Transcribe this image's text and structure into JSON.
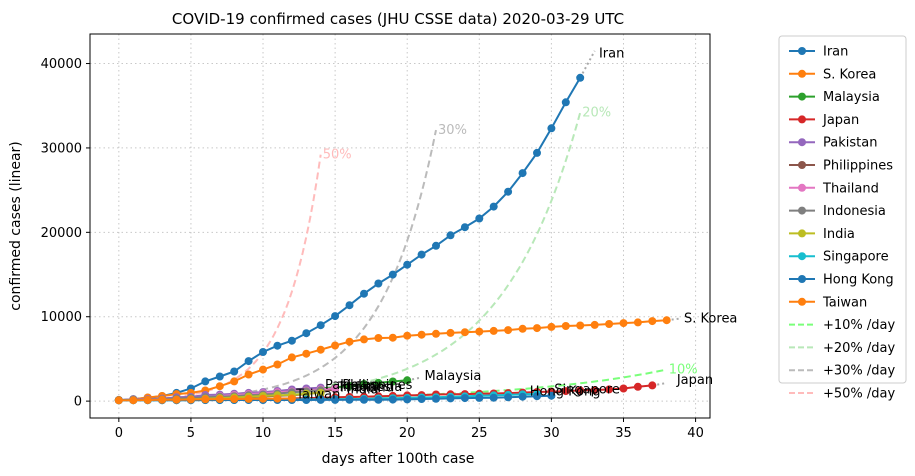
{
  "chart_data": {
    "type": "line",
    "title": "COVID-19 confirmed cases (JHU CSSE data) 2020-03-29 UTC",
    "xlabel": "days after 100th case",
    "ylabel": "confirmed cases (linear)",
    "xlim": [
      -2,
      41
    ],
    "ylim": [
      -2000,
      43500
    ],
    "xticks": [
      0,
      5,
      10,
      15,
      20,
      25,
      30,
      35,
      40
    ],
    "yticks": [
      0,
      10000,
      20000,
      30000,
      40000
    ],
    "grid": true,
    "legend_position": "outside-right",
    "series": [
      {
        "name": "Iran",
        "color": "#1f77b4",
        "y": [
          100,
          245,
          388,
          593,
          978,
          1501,
          2336,
          2922,
          3513,
          4747,
          5823,
          6566,
          7161,
          8042,
          9000,
          10075,
          11364,
          12729,
          13938,
          14991,
          16169,
          17361,
          18407,
          19644,
          20610,
          21638,
          23049,
          24811,
          27017,
          29406,
          32332,
          35408,
          38309
        ],
        "label": "Iran",
        "label_x": 33.3,
        "label_y": 41200,
        "extrap": [
          [
            32,
            38309
          ],
          [
            33,
            41500
          ]
        ]
      },
      {
        "name": "S. Korea",
        "color": "#ff7f0e",
        "y": [
          104,
          204,
          433,
          602,
          833,
          977,
          1261,
          1766,
          2337,
          3150,
          3736,
          4335,
          5186,
          5621,
          6088,
          6593,
          7041,
          7314,
          7478,
          7513,
          7755,
          7869,
          7979,
          8086,
          8162,
          8236,
          8320,
          8413,
          8565,
          8652,
          8799,
          8897,
          8961,
          9037,
          9137,
          9241,
          9332,
          9478,
          9583
        ],
        "label": "S. Korea",
        "label_x": 39.2,
        "label_y": 9800,
        "extrap": [
          [
            38,
            9583
          ],
          [
            39,
            9800
          ]
        ]
      },
      {
        "name": "Malaysia",
        "color": "#2ca02c",
        "y": [
          117,
          129,
          149,
          158,
          197,
          238,
          428,
          566,
          673,
          790,
          900,
          1030,
          1183,
          1306,
          1518,
          1624,
          1796,
          2031,
          2161,
          2320,
          2470
        ],
        "label": "Malaysia",
        "label_x": 21.2,
        "label_y": 3000,
        "extrap": [
          [
            20,
            2470
          ],
          [
            21,
            2800
          ]
        ]
      },
      {
        "name": "Japan",
        "color": "#d62728",
        "y": [
          105,
          132,
          144,
          157,
          164,
          186,
          210,
          230,
          239,
          254,
          268,
          284,
          317,
          349,
          408,
          455,
          488,
          514,
          568,
          620,
          675,
          716,
          780,
          814,
          829,
          873,
          907,
          950,
          1007,
          1086,
          1128,
          1193,
          1268,
          1307,
          1387,
          1499,
          1693,
          1866
        ],
        "label": "Japan",
        "label_x": 38.7,
        "label_y": 2500,
        "extrap": [
          [
            37,
            1866
          ],
          [
            38,
            2150
          ]
        ]
      },
      {
        "name": "Pakistan",
        "color": "#9467bd",
        "y": [
          136,
          187,
          236,
          299,
          454,
          501,
          730,
          776,
          875,
          972,
          1063,
          1201,
          1373,
          1495,
          1597
        ],
        "label": "Pakistan",
        "label_x": 14.3,
        "label_y": 1900,
        "extrap": []
      },
      {
        "name": "Philippines",
        "color": "#8c564b",
        "y": [
          111,
          140,
          142,
          187,
          202,
          217,
          230,
          307,
          380,
          462,
          552,
          636,
          707,
          803,
          1075,
          1418
        ],
        "label": "Philippines",
        "label_x": 15.5,
        "label_y": 1900,
        "extrap": []
      },
      {
        "name": "Thailand",
        "color": "#e377c2",
        "y": [
          114,
          147,
          177,
          212,
          272,
          322,
          411,
          599,
          721,
          827,
          934,
          1045,
          1136,
          1245,
          1388,
          1524
        ],
        "label": "Thailand",
        "label_x": 15.2,
        "label_y": 1600,
        "extrap": []
      },
      {
        "name": "Indonesia",
        "color": "#7f7f7f",
        "y": [
          117,
          134,
          172,
          227,
          309,
          369,
          450,
          514,
          579,
          686,
          790,
          893,
          1046,
          1155,
          1285
        ],
        "label": "Indonesia",
        "label_x": 15.3,
        "label_y": 1700,
        "extrap": []
      },
      {
        "name": "India",
        "color": "#bcbd22",
        "y": [
          107,
          114,
          137,
          151,
          173,
          223,
          283,
          360,
          434,
          519,
          606,
          694,
          724,
          873,
          979
        ],
        "label": "India",
        "label_x": 15.8,
        "label_y": 1400,
        "extrap": []
      },
      {
        "name": "Singapore",
        "color": "#17becf",
        "y": [
          102,
          106,
          108,
          110,
          110,
          117,
          130,
          138,
          150,
          160,
          166,
          178,
          178,
          200,
          212,
          226,
          243,
          266,
          313,
          345,
          385,
          432,
          455,
          509,
          558,
          631,
          683,
          732,
          802,
          844
        ],
        "label": "Singapore",
        "label_x": 30.2,
        "label_y": 1400,
        "extrap": []
      },
      {
        "name": "Hong Kong",
        "color": "#1f77b4",
        "y": [
          105,
          106,
          107,
          109,
          114,
          115,
          120,
          126,
          129,
          130,
          131,
          134,
          136,
          138,
          146,
          149,
          155,
          157,
          162,
          181,
          208,
          256,
          273,
          317,
          356,
          386,
          410,
          453,
          518,
          582,
          641
        ],
        "label": "Hong Kong",
        "label_x": 28.5,
        "label_y": 1150,
        "extrap": []
      },
      {
        "name": "Taiwan",
        "color": "#ff7f0e",
        "y": [
          100,
          108,
          135,
          153,
          169,
          195,
          215,
          235,
          252,
          267,
          283,
          298,
          306
        ],
        "label": "Taiwan",
        "label_x": 12.3,
        "label_y": 800,
        "extrap": []
      }
    ],
    "reference_lines": [
      {
        "name": "+10% /day",
        "color": "#7aff7a",
        "rate": 0.1,
        "end_x": 38,
        "label": "10%"
      },
      {
        "name": "+20% /day",
        "color": "#b8e8b8",
        "rate": 0.2,
        "end_x": 32,
        "label": "20%"
      },
      {
        "name": "+30% /day",
        "color": "#bbbbbb",
        "rate": 0.3,
        "end_x": 22,
        "label": "30%"
      },
      {
        "name": "+50% /day",
        "color": "#ffbbbb",
        "rate": 0.5,
        "end_x": 14,
        "label": "50%"
      }
    ]
  }
}
